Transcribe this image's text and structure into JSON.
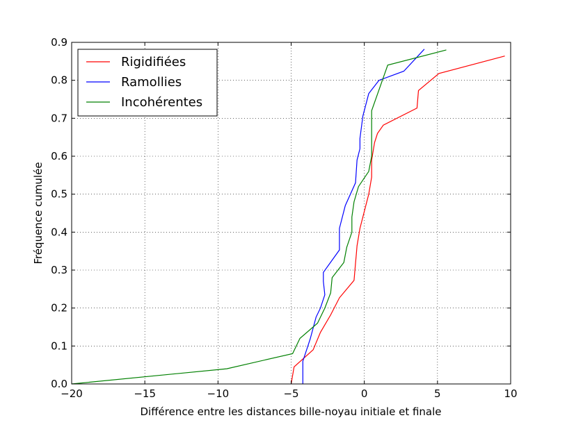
{
  "chart_data": {
    "type": "line",
    "xlabel": "Différence entre les distances bille-noyau initiale et finale",
    "ylabel": "Fréquence cumulée",
    "xlim": [
      -20,
      10
    ],
    "ylim": [
      0,
      0.9
    ],
    "xticks": [
      -20,
      -15,
      -10,
      -5,
      0,
      5,
      10
    ],
    "xtick_labels": [
      "−20",
      "−15",
      "−10",
      "−5",
      "0",
      "5",
      "10"
    ],
    "yticks": [
      0.0,
      0.1,
      0.2,
      0.3,
      0.4,
      0.5,
      0.6,
      0.7,
      0.8,
      0.9
    ],
    "ytick_labels": [
      "0.0",
      "0.1",
      "0.2",
      "0.3",
      "0.4",
      "0.5",
      "0.6",
      "0.7",
      "0.8",
      "0.9"
    ],
    "grid": true,
    "legend_position": "top-left",
    "series": [
      {
        "name": "Rigidifiées",
        "color": "#ff0000",
        "x": [
          -5.0,
          -4.8,
          -3.5,
          -3.0,
          -2.3,
          -1.7,
          -0.7,
          -0.6,
          -0.55,
          -0.5,
          -0.3,
          0.0,
          0.3,
          0.5,
          0.5,
          0.7,
          0.9,
          1.3,
          3.6,
          3.7,
          5.1,
          9.6
        ],
        "y": [
          0.0,
          0.045,
          0.09,
          0.136,
          0.182,
          0.227,
          0.273,
          0.318,
          0.34,
          0.364,
          0.41,
          0.455,
          0.5,
          0.545,
          0.59,
          0.636,
          0.66,
          0.682,
          0.727,
          0.773,
          0.818,
          0.864
        ]
      },
      {
        "name": "Ramollies",
        "color": "#0000ff",
        "x": [
          -4.2,
          -4.2,
          -3.7,
          -3.3,
          -3.0,
          -2.7,
          -2.8,
          -2.8,
          -1.7,
          -1.7,
          -1.3,
          -0.6,
          -0.5,
          -0.3,
          -0.3,
          -0.1,
          0.3,
          0.6,
          1.0,
          2.7,
          4.1
        ],
        "y": [
          0.0,
          0.06,
          0.118,
          0.176,
          0.2,
          0.235,
          0.27,
          0.294,
          0.353,
          0.41,
          0.47,
          0.53,
          0.59,
          0.62,
          0.647,
          0.706,
          0.765,
          0.78,
          0.8,
          0.824,
          0.882
        ]
      },
      {
        "name": "Incohérentes",
        "color": "#008000",
        "x": [
          -20.0,
          -9.4,
          -4.9,
          -4.4,
          -3.2,
          -2.7,
          -2.3,
          -2.2,
          -1.4,
          -1.2,
          -0.85,
          -0.85,
          -0.7,
          -0.4,
          0.3,
          0.5,
          0.5,
          0.5,
          0.5,
          1.6,
          5.6
        ],
        "y": [
          0.0,
          0.04,
          0.08,
          0.12,
          0.16,
          0.2,
          0.24,
          0.28,
          0.32,
          0.36,
          0.4,
          0.44,
          0.48,
          0.52,
          0.56,
          0.6,
          0.64,
          0.68,
          0.72,
          0.84,
          0.88
        ]
      }
    ]
  }
}
